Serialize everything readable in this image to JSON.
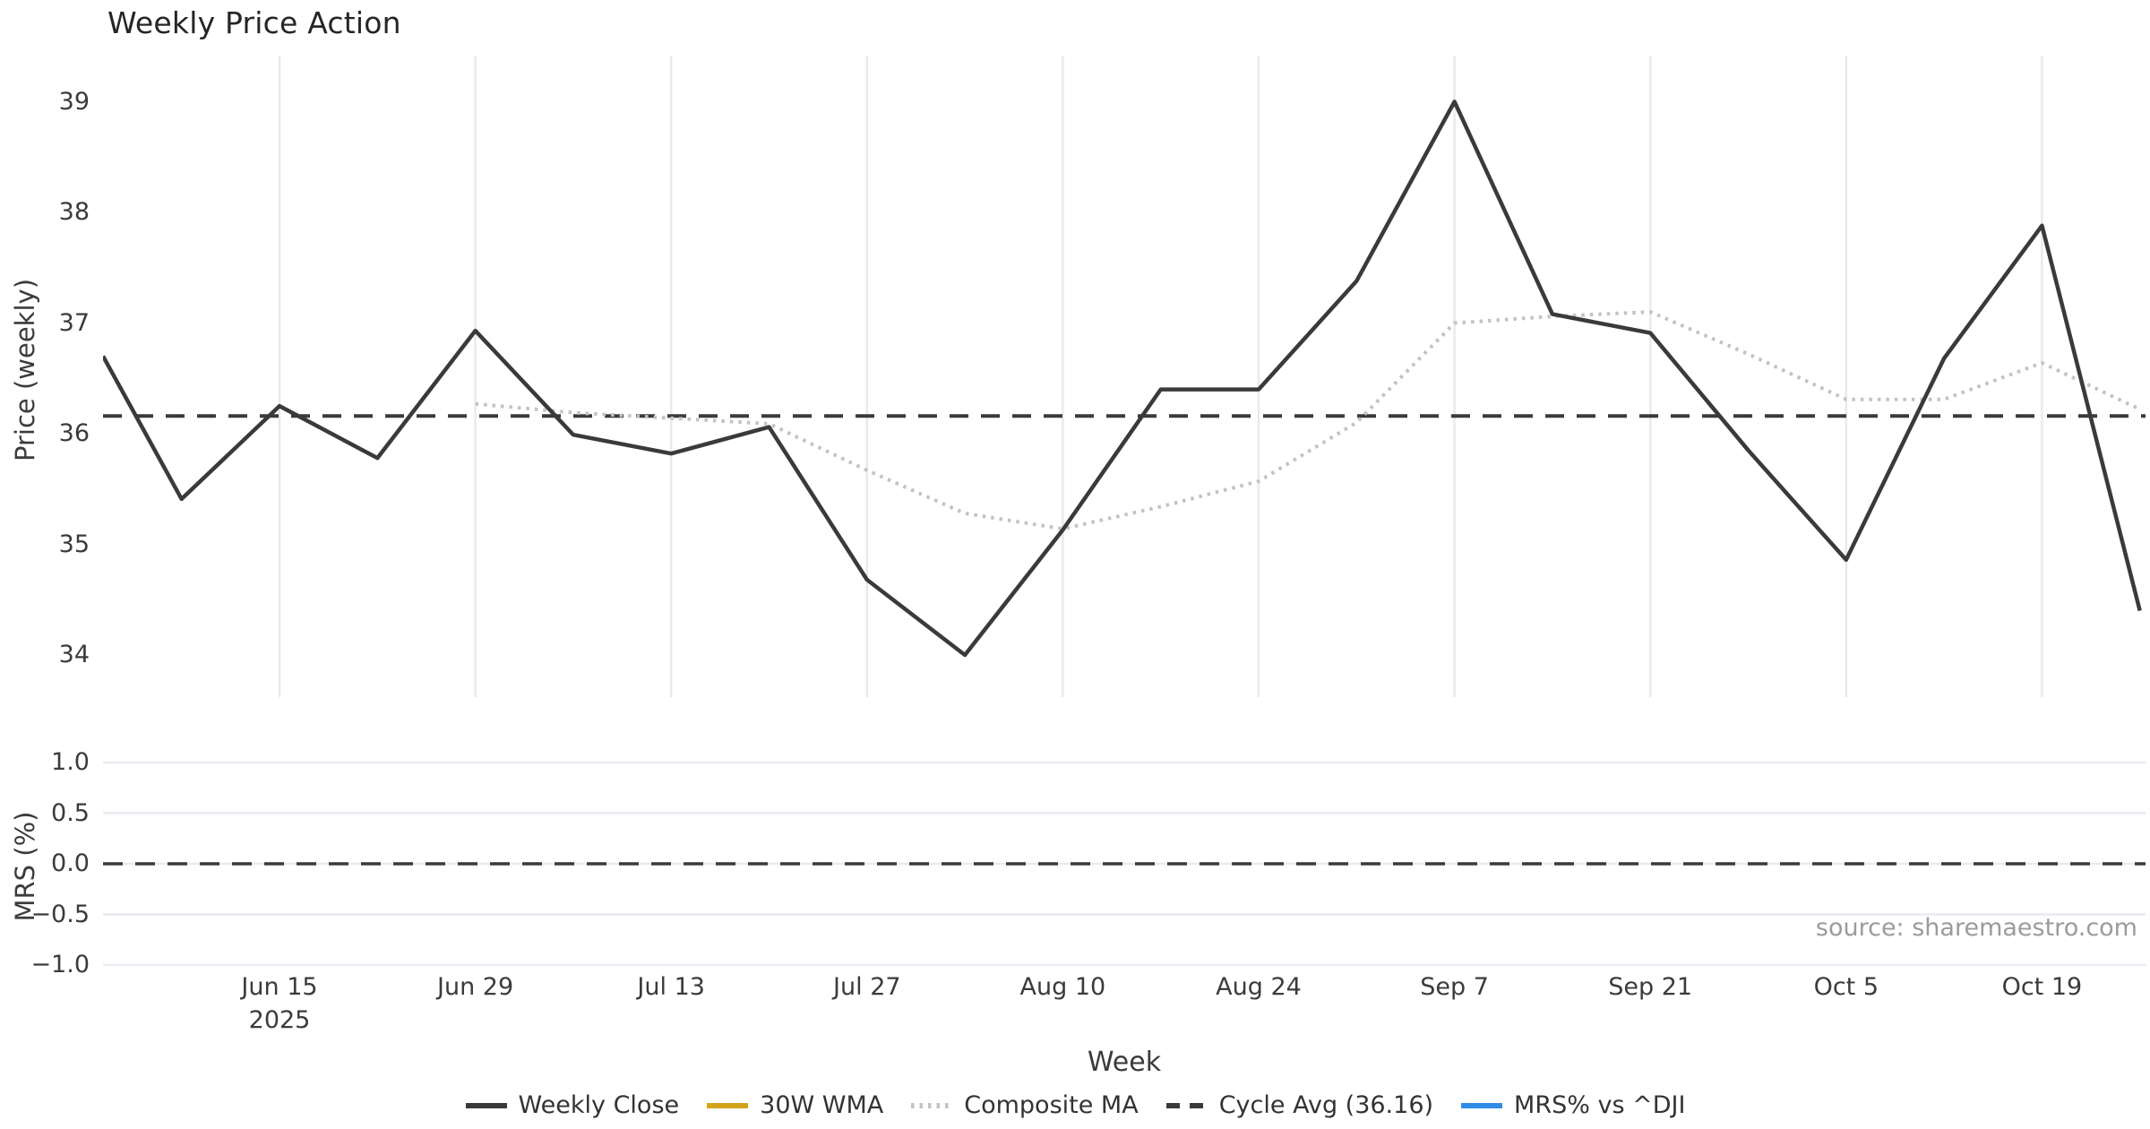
{
  "title": "Weekly Price Action",
  "source_text": "source: sharemaestro.com",
  "axes": {
    "price_axis_label": "Price (weekly)",
    "mrs_axis_label": "MRS (%)",
    "x_axis_label": "Week",
    "year_sub_label": "2025"
  },
  "colors": {
    "dark_line": "#3a3a3a",
    "composite_ma": "#c3c3c3",
    "wma_gold": "#d4a31c",
    "mrs_blue": "#2f8ce6",
    "gridline": "#e9e9f1",
    "tick_text": "#3b3b3b",
    "source_text": "#9b9b9b"
  },
  "legend": [
    {
      "label": "Weekly Close",
      "color": "#3a3a3a",
      "style": "solid"
    },
    {
      "label": "30W WMA",
      "color": "#d4a31c",
      "style": "solid"
    },
    {
      "label": "Composite MA",
      "color": "#c3c3c3",
      "style": "dotted"
    },
    {
      "label": "Cycle Avg (36.16)",
      "color": "#3a3a3a",
      "style": "dashed"
    },
    {
      "label": "MRS% vs ^DJI",
      "color": "#2f8ce6",
      "style": "solid"
    }
  ],
  "chart_data": [
    {
      "type": "line",
      "panel": "price",
      "title": "Weekly Price Action",
      "ylabel": "Price (weekly)",
      "ylim": [
        33.75,
        39.35
      ],
      "yticks": [
        39,
        38,
        37,
        36,
        35,
        34
      ],
      "grid": "vertical-only",
      "x_weeks": [
        "Jun 1",
        "Jun 8",
        "Jun 15",
        "Jun 22",
        "Jun 29",
        "Jul 6",
        "Jul 13",
        "Jul 20",
        "Jul 27",
        "Aug 3",
        "Aug 10",
        "Aug 17",
        "Aug 24",
        "Aug 31",
        "Sep 7",
        "Sep 14",
        "Sep 21",
        "Sep 28",
        "Oct 5",
        "Oct 12",
        "Oct 19",
        "Oct 26"
      ],
      "xtick_positions": [
        2,
        4,
        6,
        8,
        10,
        12,
        14,
        16,
        18,
        20
      ],
      "xtick_labels": [
        "Jun 15",
        "Jun 29",
        "Jul 13",
        "Jul 27",
        "Aug 10",
        "Aug 24",
        "Sep 7",
        "Sep 21",
        "Oct 5",
        "Oct 19"
      ],
      "series": [
        {
          "name": "Weekly Close",
          "values": [
            36.7,
            35.41,
            36.25,
            35.78,
            36.93,
            35.99,
            35.82,
            36.06,
            34.68,
            34.0,
            35.13,
            36.4,
            36.4,
            37.38,
            39.0,
            37.08,
            36.91,
            35.85,
            34.86,
            36.68,
            37.88,
            34.4
          ]
        },
        {
          "name": "Composite MA",
          "values": [
            null,
            null,
            null,
            null,
            36.27,
            36.19,
            36.14,
            36.09,
            35.67,
            35.28,
            35.14,
            35.34,
            35.57,
            36.1,
            37.0,
            37.06,
            37.1,
            36.72,
            36.31,
            36.31,
            36.64,
            36.22
          ]
        }
      ],
      "reference_lines": [
        {
          "name": "Cycle Avg",
          "value": 36.16,
          "style": "dashed"
        }
      ]
    },
    {
      "type": "line",
      "panel": "mrs",
      "ylabel": "MRS (%)",
      "xlabel": "Week",
      "ylim": [
        -1.15,
        1.15
      ],
      "yticks": [
        1.0,
        0.5,
        0.0,
        -0.5,
        -1.0
      ],
      "ytick_labels": [
        "1.0",
        "0.5",
        "0.0",
        "−0.5",
        "−1.0"
      ],
      "grid": "horizontal-only",
      "series": [],
      "note_visible_series": "none",
      "reference_lines": [
        {
          "name": "zero",
          "value": 0.0,
          "style": "dashed"
        }
      ]
    }
  ]
}
